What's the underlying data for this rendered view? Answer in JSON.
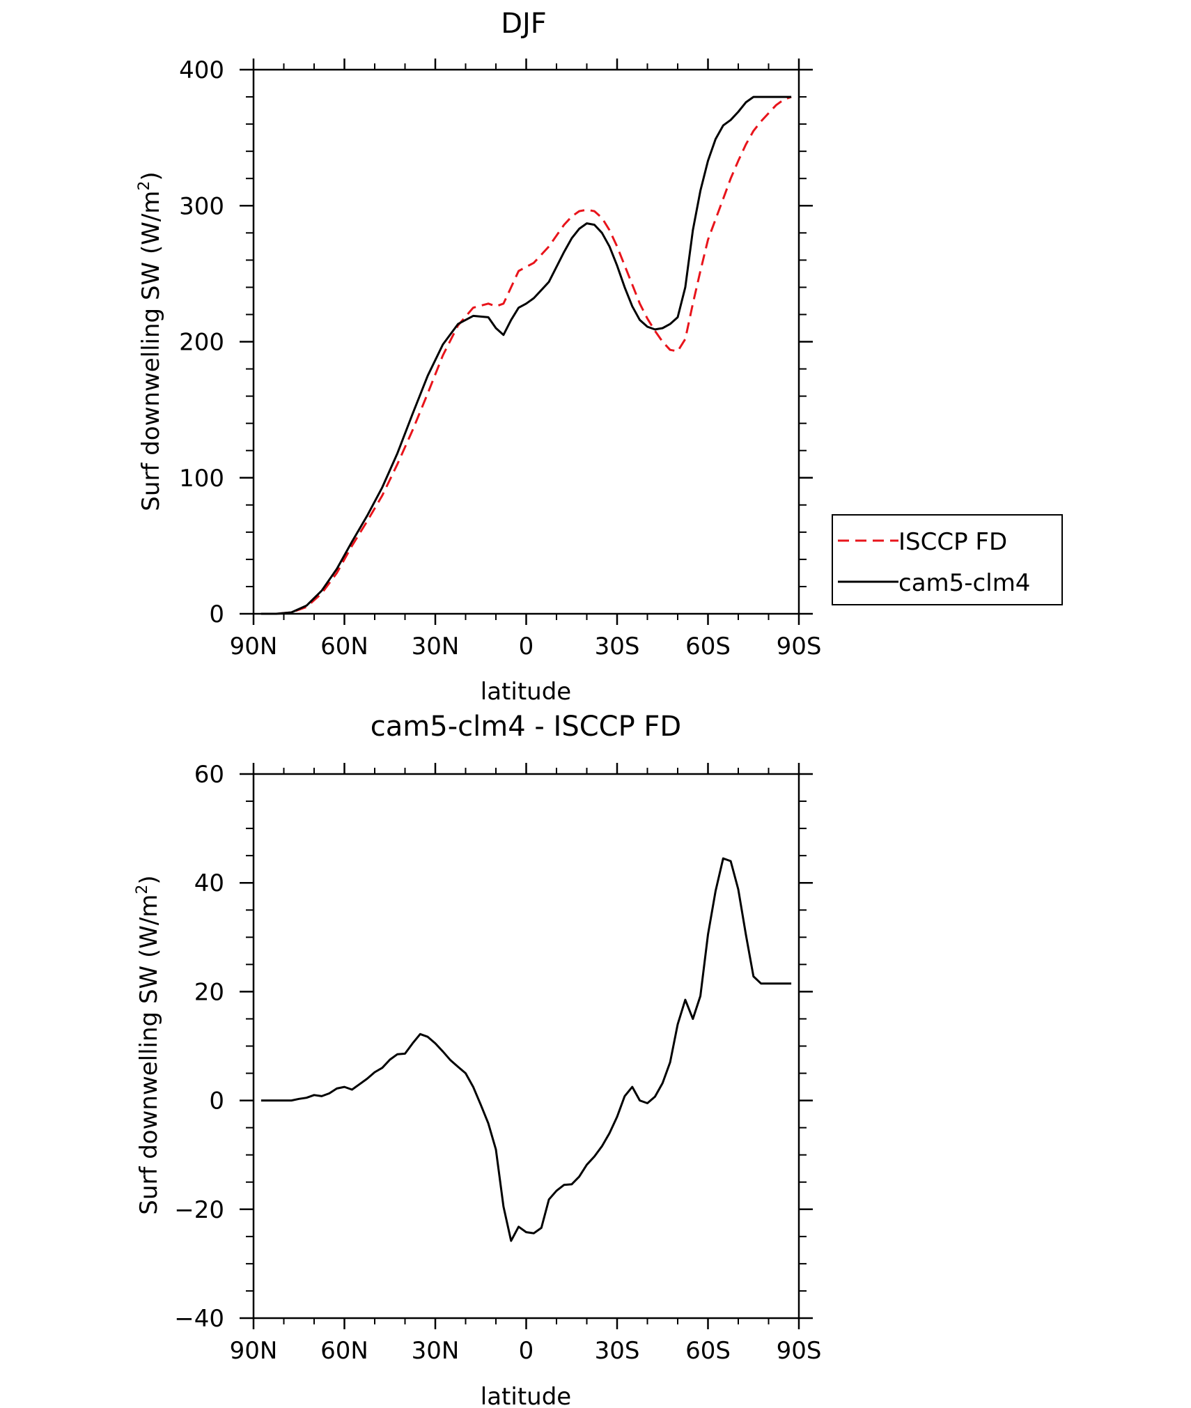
{
  "chart_data": [
    {
      "type": "line",
      "title": "DJF",
      "xlabel": "latitude",
      "ylabel": "Surf downwelling SW (W/m",
      "ylabel_sup": "2",
      "ylabel_close": ")",
      "xlim": [
        90,
        -90
      ],
      "ylim": [
        0,
        400
      ],
      "xticks": [
        90,
        60,
        30,
        0,
        -30,
        -60,
        -90
      ],
      "xtick_labels": [
        "90N",
        "60N",
        "30N",
        "0",
        "30S",
        "60S",
        "90S"
      ],
      "yticks": [
        0,
        100,
        200,
        300,
        400
      ],
      "ytick_labels": [
        "0",
        "100",
        "200",
        "300",
        "400"
      ],
      "legend_position": "right",
      "series": [
        {
          "name": "ISCCP FD",
          "color": "#e8141b",
          "dash": "dashed",
          "x": [
            87.5,
            82.5,
            77.5,
            72.5,
            67.5,
            62.5,
            57.5,
            52.5,
            47.5,
            42.5,
            37.5,
            32.5,
            27.5,
            22.5,
            17.5,
            12.5,
            10,
            7.5,
            5,
            2.5,
            0,
            -2.5,
            -5,
            -7.5,
            -10,
            -12.5,
            -15,
            -17.5,
            -20,
            -22.5,
            -25,
            -27.5,
            -30,
            -32.5,
            -35,
            -37.5,
            -40,
            -42.5,
            -45,
            -47.5,
            -50,
            -52.5,
            -55,
            -57.5,
            -60,
            -62.5,
            -65,
            -67.5,
            -70,
            -72.5,
            -75,
            -77.5,
            -80,
            -82.5,
            -85,
            -87.5
          ],
          "y": [
            0,
            0,
            1,
            5,
            15,
            30,
            50,
            68,
            87,
            110,
            135,
            162,
            190,
            212,
            225,
            228,
            226,
            228,
            240,
            252,
            255,
            258,
            264,
            270,
            278,
            286,
            292,
            296,
            297,
            296,
            291,
            282,
            270,
            256,
            242,
            228,
            217,
            208,
            200,
            194,
            193,
            202,
            228,
            252,
            275,
            290,
            305,
            320,
            333,
            345,
            355,
            362,
            368,
            374,
            378,
            380
          ]
        },
        {
          "name": "cam5-clm4",
          "color": "#000000",
          "dash": "solid",
          "x": [
            87.5,
            82.5,
            77.5,
            72.5,
            67.5,
            62.5,
            57.5,
            52.5,
            47.5,
            42.5,
            37.5,
            32.5,
            27.5,
            22.5,
            17.5,
            12.5,
            10,
            7.5,
            5,
            2.5,
            0,
            -2.5,
            -5,
            -7.5,
            -10,
            -12.5,
            -15,
            -17.5,
            -20,
            -22.5,
            -25,
            -27.5,
            -30,
            -32.5,
            -35,
            -37.5,
            -40,
            -42.5,
            -45,
            -47.5,
            -50,
            -52.5,
            -55,
            -57.5,
            -60,
            -62.5,
            -65,
            -67.5,
            -70,
            -72.5,
            -75,
            -77.5,
            -80,
            -82.5,
            -85,
            -87.5
          ],
          "y": [
            0,
            0,
            1,
            6,
            17,
            33,
            53,
            72,
            93,
            118,
            147,
            175,
            198,
            213,
            219,
            218,
            210,
            205,
            216,
            225,
            228,
            232,
            238,
            244,
            255,
            266,
            276,
            283,
            287,
            286,
            280,
            270,
            256,
            240,
            226,
            216,
            211,
            209,
            210,
            213,
            218,
            240,
            282,
            311,
            333,
            349,
            359,
            363,
            369,
            376,
            380,
            380,
            380,
            380,
            380,
            380
          ]
        }
      ]
    },
    {
      "type": "line",
      "title": "cam5-clm4 - ISCCP FD",
      "xlabel": "latitude",
      "ylabel": "Surf downwelling SW (W/m",
      "ylabel_sup": "2",
      "ylabel_close": ")",
      "xlim": [
        90,
        -90
      ],
      "ylim": [
        -40,
        60
      ],
      "xticks": [
        90,
        60,
        30,
        0,
        -30,
        -60,
        -90
      ],
      "xtick_labels": [
        "90N",
        "60N",
        "30N",
        "0",
        "30S",
        "60S",
        "90S"
      ],
      "yticks": [
        -40,
        -20,
        0,
        20,
        40,
        60
      ],
      "ytick_labels": [
        "−40",
        "−20",
        "0",
        "20",
        "40",
        "60"
      ],
      "series": [
        {
          "name": "",
          "color": "#000000",
          "dash": "solid",
          "x": [
            87.5,
            82.5,
            77.5,
            75,
            72.5,
            70,
            67.5,
            65,
            62.5,
            60,
            57.5,
            55,
            52.5,
            50,
            47.5,
            45,
            42.5,
            40,
            37.5,
            35,
            32.5,
            30,
            27.5,
            25,
            22.5,
            20,
            17.5,
            15,
            12.5,
            10,
            7.5,
            5,
            2.5,
            0,
            -2.5,
            -5,
            -7.5,
            -10,
            -12.5,
            -15,
            -17.5,
            -20,
            -22.5,
            -25,
            -27.5,
            -30,
            -32.5,
            -35,
            -37.5,
            -40,
            -42.5,
            -45,
            -47.5,
            -50,
            -52.5,
            -55,
            -57.5,
            -60,
            -62.5,
            -65,
            -67.5,
            -70,
            -72.5,
            -75,
            -77.5,
            -80,
            -82.5,
            -85,
            -87.5
          ],
          "y": [
            0,
            0,
            0,
            0.3,
            0.5,
            1,
            0.8,
            1.3,
            2.2,
            2.5,
            2,
            3,
            4,
            5.2,
            6,
            7.5,
            8.5,
            8.6,
            10.5,
            12.2,
            11.7,
            10.5,
            9,
            7.4,
            6.2,
            5,
            2.5,
            -0.8,
            -4.2,
            -9,
            -19.5,
            -25.8,
            -23.2,
            -24.2,
            -24.4,
            -23.4,
            -18.2,
            -16.6,
            -15.5,
            -15.4,
            -14,
            -11.8,
            -10.3,
            -8.4,
            -6,
            -3,
            0.8,
            2.5,
            0,
            -0.5,
            0.7,
            3.2,
            7,
            14,
            18.5,
            15,
            19.2,
            30.5,
            38.5,
            44.5,
            44,
            38.8,
            30.5,
            22.8,
            21.5,
            21.5,
            21.5,
            21.5,
            21.5
          ]
        }
      ]
    }
  ]
}
